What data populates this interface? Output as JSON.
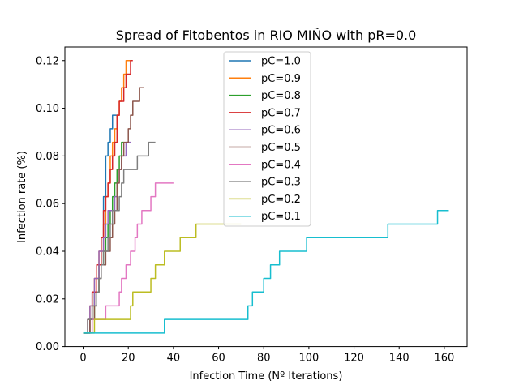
{
  "chart_data": {
    "type": "line",
    "title": "Spread of Fitobentos in RIO MIÑO with pR=0.0",
    "xlabel": "Infection Time (Nº Iterations)",
    "ylabel": "Infection rate (%)",
    "xlim": [
      -8.1,
      170.1
    ],
    "ylim": [
      0.0,
      0.1257
    ],
    "xticks": [
      0,
      20,
      40,
      60,
      80,
      100,
      120,
      140,
      160
    ],
    "yticks": [
      0.0,
      0.02,
      0.04,
      0.06,
      0.08,
      0.1,
      0.12
    ],
    "xtick_labels": [
      "0",
      "20",
      "40",
      "60",
      "80",
      "100",
      "120",
      "140",
      "160"
    ],
    "ytick_labels": [
      "0.00",
      "0.02",
      "0.04",
      "0.06",
      "0.08",
      "0.10",
      "0.12"
    ],
    "legend_position": "top-center",
    "grid": false,
    "series": [
      {
        "name": "pC=1.0",
        "color": "#1f77b4",
        "points": [
          [
            0,
            0.0057
          ],
          [
            2,
            0.0114
          ],
          [
            4,
            0.0229
          ],
          [
            6,
            0.0343
          ],
          [
            8,
            0.0457
          ],
          [
            9,
            0.0629
          ],
          [
            10,
            0.08
          ],
          [
            11,
            0.0857
          ],
          [
            12,
            0.0914
          ],
          [
            13,
            0.0971
          ],
          [
            16,
            0.0971
          ]
        ]
      },
      {
        "name": "pC=0.9",
        "color": "#ff7f0e",
        "points": [
          [
            0,
            0.0057
          ],
          [
            3,
            0.0171
          ],
          [
            5,
            0.0286
          ],
          [
            7,
            0.04
          ],
          [
            9,
            0.0514
          ],
          [
            10,
            0.0629
          ],
          [
            11,
            0.0686
          ],
          [
            12,
            0.08
          ],
          [
            13,
            0.0857
          ],
          [
            14,
            0.0914
          ],
          [
            15,
            0.0971
          ],
          [
            16,
            0.1029
          ],
          [
            17,
            0.1086
          ],
          [
            18,
            0.1143
          ],
          [
            19,
            0.12
          ],
          [
            21,
            0.12
          ]
        ]
      },
      {
        "name": "pC=0.8",
        "color": "#2ca02c",
        "points": [
          [
            0,
            0.0057
          ],
          [
            3,
            0.0114
          ],
          [
            5,
            0.0229
          ],
          [
            7,
            0.0343
          ],
          [
            9,
            0.04
          ],
          [
            10,
            0.0457
          ],
          [
            11,
            0.0514
          ],
          [
            12,
            0.0571
          ],
          [
            13,
            0.0629
          ],
          [
            14,
            0.0686
          ],
          [
            15,
            0.0743
          ],
          [
            16,
            0.08
          ],
          [
            17,
            0.0857
          ],
          [
            18,
            0.0857
          ]
        ]
      },
      {
        "name": "pC=0.7",
        "color": "#d62728",
        "points": [
          [
            0,
            0.0057
          ],
          [
            2,
            0.0114
          ],
          [
            4,
            0.0229
          ],
          [
            6,
            0.0343
          ],
          [
            8,
            0.0457
          ],
          [
            9,
            0.0571
          ],
          [
            10,
            0.0629
          ],
          [
            11,
            0.0686
          ],
          [
            12,
            0.0743
          ],
          [
            13,
            0.08
          ],
          [
            14,
            0.0857
          ],
          [
            15,
            0.0971
          ],
          [
            16,
            0.1029
          ],
          [
            17,
            0.1029
          ],
          [
            18,
            0.1086
          ],
          [
            19,
            0.1143
          ],
          [
            20,
            0.1143
          ],
          [
            21,
            0.12
          ],
          [
            22,
            0.12
          ]
        ]
      },
      {
        "name": "pC=0.6",
        "color": "#9467bd",
        "points": [
          [
            0,
            0.0057
          ],
          [
            3,
            0.0171
          ],
          [
            5,
            0.0286
          ],
          [
            7,
            0.04
          ],
          [
            9,
            0.0457
          ],
          [
            10,
            0.0514
          ],
          [
            11,
            0.0571
          ],
          [
            12,
            0.0571
          ],
          [
            14,
            0.0629
          ],
          [
            15,
            0.0686
          ],
          [
            16,
            0.0743
          ],
          [
            17,
            0.08
          ],
          [
            19,
            0.0857
          ],
          [
            21,
            0.0857
          ]
        ]
      },
      {
        "name": "pC=0.5",
        "color": "#8c564b",
        "points": [
          [
            0,
            0.0057
          ],
          [
            3,
            0.0114
          ],
          [
            5,
            0.0171
          ],
          [
            6,
            0.0229
          ],
          [
            7,
            0.0286
          ],
          [
            8,
            0.0343
          ],
          [
            10,
            0.04
          ],
          [
            12,
            0.0457
          ],
          [
            13,
            0.0514
          ],
          [
            14,
            0.0571
          ],
          [
            15,
            0.0686
          ],
          [
            16,
            0.0743
          ],
          [
            17,
            0.08
          ],
          [
            18,
            0.0857
          ],
          [
            20,
            0.0914
          ],
          [
            21,
            0.0971
          ],
          [
            22,
            0.1029
          ],
          [
            25,
            0.1086
          ],
          [
            27,
            0.1086
          ]
        ]
      },
      {
        "name": "pC=0.4",
        "color": "#e377c2",
        "points": [
          [
            0,
            0.0057
          ],
          [
            4,
            0.0114
          ],
          [
            6,
            0.0114
          ],
          [
            10,
            0.0171
          ],
          [
            16,
            0.0229
          ],
          [
            17,
            0.0286
          ],
          [
            19,
            0.0343
          ],
          [
            21,
            0.04
          ],
          [
            23,
            0.0457
          ],
          [
            24,
            0.0514
          ],
          [
            26,
            0.0571
          ],
          [
            30,
            0.0629
          ],
          [
            32,
            0.0686
          ],
          [
            37,
            0.0686
          ],
          [
            40,
            0.0686
          ]
        ]
      },
      {
        "name": "pC=0.3",
        "color": "#7f7f7f",
        "points": [
          [
            0,
            0.0057
          ],
          [
            2,
            0.0114
          ],
          [
            4,
            0.0171
          ],
          [
            6,
            0.0229
          ],
          [
            7,
            0.0286
          ],
          [
            8,
            0.0343
          ],
          [
            9,
            0.04
          ],
          [
            11,
            0.0457
          ],
          [
            12,
            0.0514
          ],
          [
            13,
            0.0571
          ],
          [
            16,
            0.0629
          ],
          [
            17,
            0.0686
          ],
          [
            18,
            0.0743
          ],
          [
            24,
            0.08
          ],
          [
            29,
            0.0857
          ],
          [
            32,
            0.0857
          ]
        ]
      },
      {
        "name": "pC=0.2",
        "color": "#bcbd22",
        "points": [
          [
            0,
            0.0057
          ],
          [
            5,
            0.0114
          ],
          [
            21,
            0.0171
          ],
          [
            22,
            0.0229
          ],
          [
            30,
            0.0286
          ],
          [
            32,
            0.0343
          ],
          [
            36,
            0.04
          ],
          [
            43,
            0.0457
          ],
          [
            50,
            0.0514
          ],
          [
            70,
            0.0514
          ]
        ]
      },
      {
        "name": "pC=0.1",
        "color": "#17becf",
        "points": [
          [
            0,
            0.0057
          ],
          [
            36,
            0.0114
          ],
          [
            73,
            0.0171
          ],
          [
            75,
            0.0229
          ],
          [
            80,
            0.0286
          ],
          [
            83,
            0.0343
          ],
          [
            87,
            0.04
          ],
          [
            99,
            0.0457
          ],
          [
            135,
            0.0514
          ],
          [
            157,
            0.0571
          ],
          [
            162,
            0.0571
          ]
        ]
      }
    ]
  }
}
